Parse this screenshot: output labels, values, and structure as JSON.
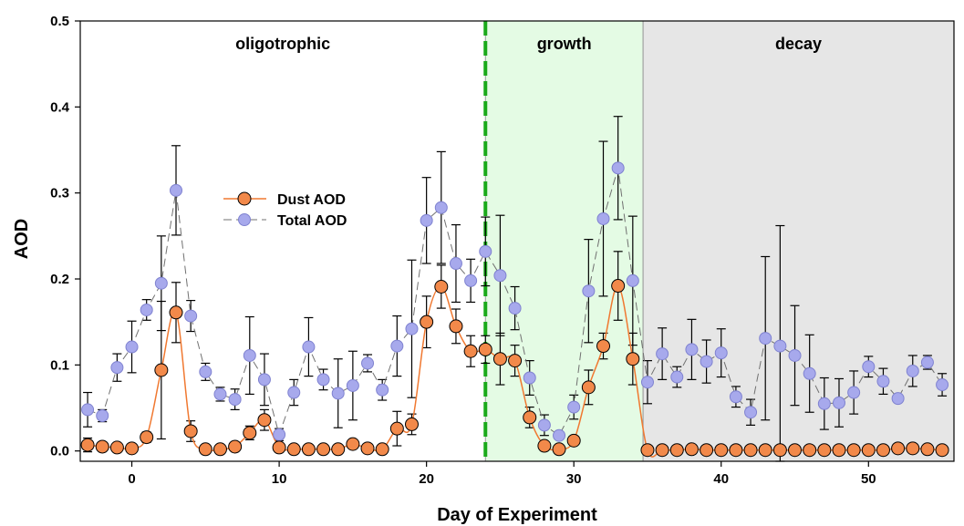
{
  "chart_data": {
    "type": "scatter",
    "xlabel": "Day of Experiment",
    "ylabel": "AOD",
    "xlim": [
      -3.5,
      55.8
    ],
    "ylim": [
      -0.012,
      0.5
    ],
    "xticks": [
      0,
      10,
      20,
      30,
      40,
      50
    ],
    "yticks": [
      0.0,
      0.1,
      0.2,
      0.3,
      0.4,
      0.5
    ],
    "ytick_labels": [
      "0.0",
      "0.1",
      "0.2",
      "0.3",
      "0.4",
      "0.5"
    ],
    "grid": false,
    "legend_position": "center-left",
    "phases": [
      {
        "label": "oligotrophic",
        "x_start": -3.5,
        "x_end": 24,
        "color": "#ffffff"
      },
      {
        "label": "growth",
        "x_start": 24,
        "x_end": 34.7,
        "color": "#e4fbe4"
      },
      {
        "label": "decay",
        "x_start": 34.7,
        "x_end": 55.8,
        "color": "#e6e6e6"
      }
    ],
    "divider": {
      "x": 24,
      "color": "#1aaa1a"
    },
    "series": [
      {
        "name": "Dust AOD",
        "marker_color": "#f2894a",
        "line_color": "#f07830",
        "line_style": "solid-smooth",
        "x": [
          -3,
          -2,
          -1,
          0,
          1,
          2,
          3,
          4,
          5,
          6,
          7,
          8,
          9,
          10,
          11,
          12,
          13,
          14,
          15,
          16,
          17,
          18,
          19,
          20,
          21,
          22,
          23,
          24,
          25,
          26,
          27,
          28,
          29,
          30,
          31,
          32,
          33,
          34,
          35,
          36,
          37,
          38,
          39,
          40,
          41,
          42,
          43,
          44,
          45,
          46,
          47,
          48,
          49,
          50,
          51,
          52,
          53,
          54,
          55
        ],
        "y": [
          0.007,
          0.005,
          0.004,
          0.003,
          0.016,
          0.094,
          0.161,
          0.023,
          0.002,
          0.002,
          0.005,
          0.021,
          0.036,
          0.004,
          0.002,
          0.002,
          0.002,
          0.002,
          0.008,
          0.003,
          0.002,
          0.026,
          0.031,
          0.15,
          0.191,
          0.145,
          0.116,
          0.118,
          0.107,
          0.105,
          0.039,
          0.006,
          0.002,
          0.012,
          0.074,
          0.122,
          0.192,
          0.107,
          0.001,
          0.001,
          0.001,
          0.002,
          0.001,
          0.001,
          0.001,
          0.001,
          0.001,
          0.001,
          0.001,
          0.001,
          0.001,
          0.001,
          0.001,
          0.001,
          0.001,
          0.003,
          0.003,
          0.002,
          0.001
        ],
        "error": [
          0.008,
          0.002,
          0.002,
          0.002,
          0.006,
          0.08,
          0.035,
          0.012,
          0.001,
          0.001,
          0.003,
          0.008,
          0.012,
          0.002,
          0.001,
          0.001,
          0.001,
          0.001,
          0.004,
          0.002,
          0.001,
          0.02,
          0.012,
          0.03,
          0.025,
          0.02,
          0.018,
          0.016,
          0.03,
          0.018,
          0.012,
          0.003,
          0.001,
          0.004,
          0.02,
          0.015,
          0.04,
          0.03,
          0,
          0,
          0,
          0,
          0,
          0,
          0,
          0,
          0,
          0,
          0,
          0,
          0,
          0,
          0,
          0,
          0,
          0,
          0,
          0,
          0
        ]
      },
      {
        "name": "Total AOD",
        "marker_color": "#a7a9ec",
        "line_color": "#707070",
        "line_style": "dashed",
        "x": [
          -3,
          -2,
          -1,
          0,
          1,
          2,
          3,
          4,
          5,
          6,
          7,
          8,
          9,
          10,
          11,
          12,
          13,
          14,
          15,
          16,
          17,
          18,
          19,
          20,
          21,
          22,
          23,
          24,
          25,
          26,
          27,
          28,
          29,
          30,
          31,
          32,
          33,
          34,
          35,
          36,
          37,
          38,
          39,
          40,
          41,
          42,
          43,
          44,
          45,
          46,
          47,
          48,
          49,
          50,
          51,
          52,
          53,
          54,
          55
        ],
        "y": [
          0.048,
          0.041,
          0.097,
          0.121,
          0.164,
          0.195,
          0.303,
          0.157,
          0.092,
          0.066,
          0.06,
          0.111,
          0.083,
          0.019,
          0.068,
          0.121,
          0.083,
          0.067,
          0.076,
          0.102,
          0.071,
          0.122,
          0.142,
          0.268,
          0.283,
          0.218,
          0.198,
          0.232,
          0.204,
          0.166,
          0.085,
          0.03,
          0.018,
          0.051,
          0.186,
          0.27,
          0.329,
          0.198,
          0.08,
          0.113,
          0.086,
          0.118,
          0.104,
          0.114,
          0.063,
          0.045,
          0.131,
          0.122,
          0.111,
          0.09,
          0.055,
          0.056,
          0.068,
          0.098,
          0.081,
          0.061,
          0.093,
          0.103,
          0.077
        ],
        "error": [
          0.02,
          0.007,
          0.016,
          0.03,
          0.012,
          0.055,
          0.052,
          0.018,
          0.01,
          0.008,
          0.012,
          0.045,
          0.03,
          0.007,
          0.015,
          0.034,
          0.012,
          0.04,
          0.04,
          0.01,
          0.012,
          0.035,
          0.08,
          0.05,
          0.065,
          0.045,
          0.025,
          0.04,
          0.07,
          0.025,
          0.02,
          0.012,
          0.004,
          0.014,
          0.06,
          0.09,
          0.06,
          0.075,
          0.025,
          0.03,
          0.012,
          0.035,
          0.025,
          0.028,
          0.012,
          0.015,
          0.095,
          0.14,
          0.058,
          0.045,
          0.03,
          0.028,
          0.025,
          0.012,
          0.015,
          0.004,
          0.018,
          0.008,
          0.013
        ]
      }
    ]
  }
}
